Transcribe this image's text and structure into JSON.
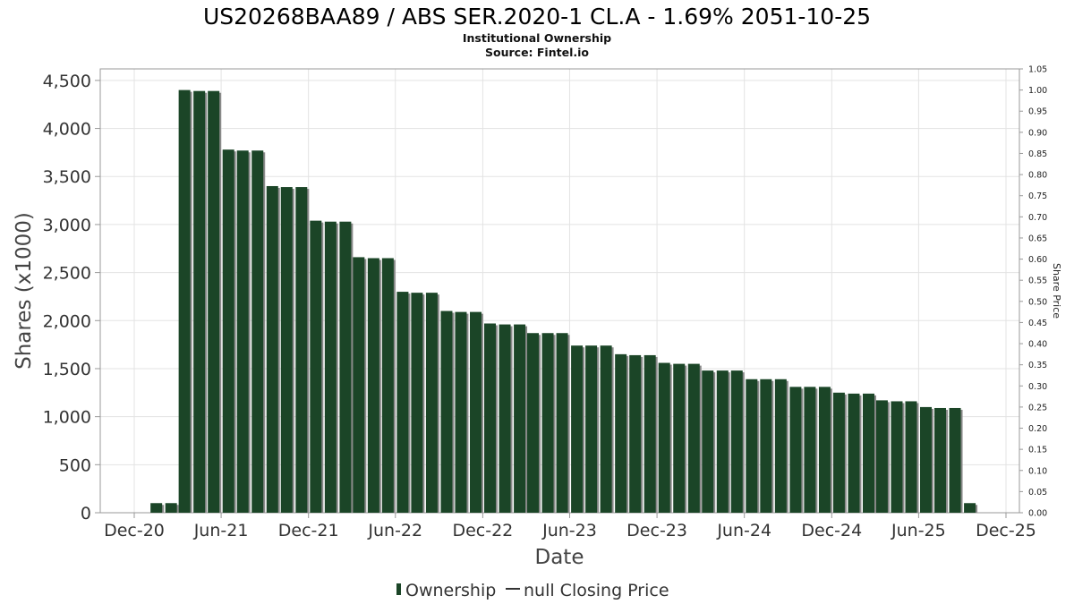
{
  "chart_data": {
    "type": "bar",
    "title": "US20268BAA89 / ABS SER.2020-1 CL.A - 1.69% 2051-10-25",
    "subtitle_lines": [
      "Institutional Ownership",
      "Source: Fintel.io"
    ],
    "xlabel": "Date",
    "ylabel": "Shares (x1000)",
    "y2label": "Share Price",
    "ylim": [
      0,
      4620
    ],
    "y2lim": [
      0,
      1.05
    ],
    "y_ticks": [
      "0",
      "500",
      "1,000",
      "1,500",
      "2,000",
      "2,500",
      "3,000",
      "3,500",
      "4,000",
      "4,500"
    ],
    "y2_ticks": [
      "0.00",
      "0.05",
      "0.10",
      "0.15",
      "0.20",
      "0.25",
      "0.30",
      "0.35",
      "0.40",
      "0.45",
      "0.50",
      "0.55",
      "0.60",
      "0.65",
      "0.70",
      "0.75",
      "0.80",
      "0.85",
      "0.90",
      "0.95",
      "1.00",
      "1.05"
    ],
    "x_ticks": [
      "Dec-20",
      "Jun-21",
      "Dec-21",
      "Jun-22",
      "Dec-22",
      "Jun-23",
      "Dec-23",
      "Jun-24",
      "Dec-24",
      "Jun-25",
      "Dec-25"
    ],
    "grid": true,
    "legend_position": "bottom-center",
    "colors": {
      "bar": "#1b4527",
      "bar_shadow": "#8a8a8a",
      "frame": "#999999",
      "grid": "#e3e3e3"
    },
    "series": [
      {
        "name": "Ownership",
        "x": [
          "2021-01-01",
          "2021-02-01",
          "2021-03-01",
          "2021-04-01",
          "2021-05-01",
          "2021-06-01",
          "2021-07-01",
          "2021-08-01",
          "2021-09-01",
          "2021-10-01",
          "2021-11-01",
          "2021-12-01",
          "2022-01-01",
          "2022-02-01",
          "2022-03-01",
          "2022-04-01",
          "2022-05-01",
          "2022-06-01",
          "2022-07-01",
          "2022-08-01",
          "2022-09-01",
          "2022-10-01",
          "2022-11-01",
          "2022-12-01",
          "2023-01-01",
          "2023-02-01",
          "2023-03-01",
          "2023-04-01",
          "2023-05-01",
          "2023-06-01",
          "2023-07-01",
          "2023-08-01",
          "2023-09-01",
          "2023-10-01",
          "2023-11-01",
          "2023-12-01",
          "2024-01-01",
          "2024-02-01",
          "2024-03-01",
          "2024-04-01",
          "2024-05-01",
          "2024-06-01",
          "2024-07-01",
          "2024-08-01",
          "2024-09-01",
          "2024-10-01",
          "2024-11-01",
          "2024-12-01",
          "2025-01-01",
          "2025-02-01",
          "2025-03-01",
          "2025-04-01",
          "2025-05-01",
          "2025-06-01",
          "2025-07-01",
          "2025-08-01",
          "2025-09-01"
        ],
        "values": [
          100,
          100,
          4400,
          4390,
          4390,
          3780,
          3770,
          3770,
          3400,
          3390,
          3390,
          3040,
          3030,
          3030,
          2660,
          2650,
          2650,
          2300,
          2290,
          2290,
          2100,
          2090,
          2090,
          1970,
          1960,
          1960,
          1870,
          1870,
          1870,
          1740,
          1740,
          1740,
          1650,
          1640,
          1640,
          1560,
          1550,
          1550,
          1480,
          1480,
          1480,
          1390,
          1390,
          1390,
          1310,
          1310,
          1310,
          1250,
          1240,
          1240,
          1170,
          1160,
          1160,
          1100,
          1090,
          1090,
          100
        ]
      },
      {
        "name": "null Closing Price",
        "values": []
      }
    ]
  }
}
